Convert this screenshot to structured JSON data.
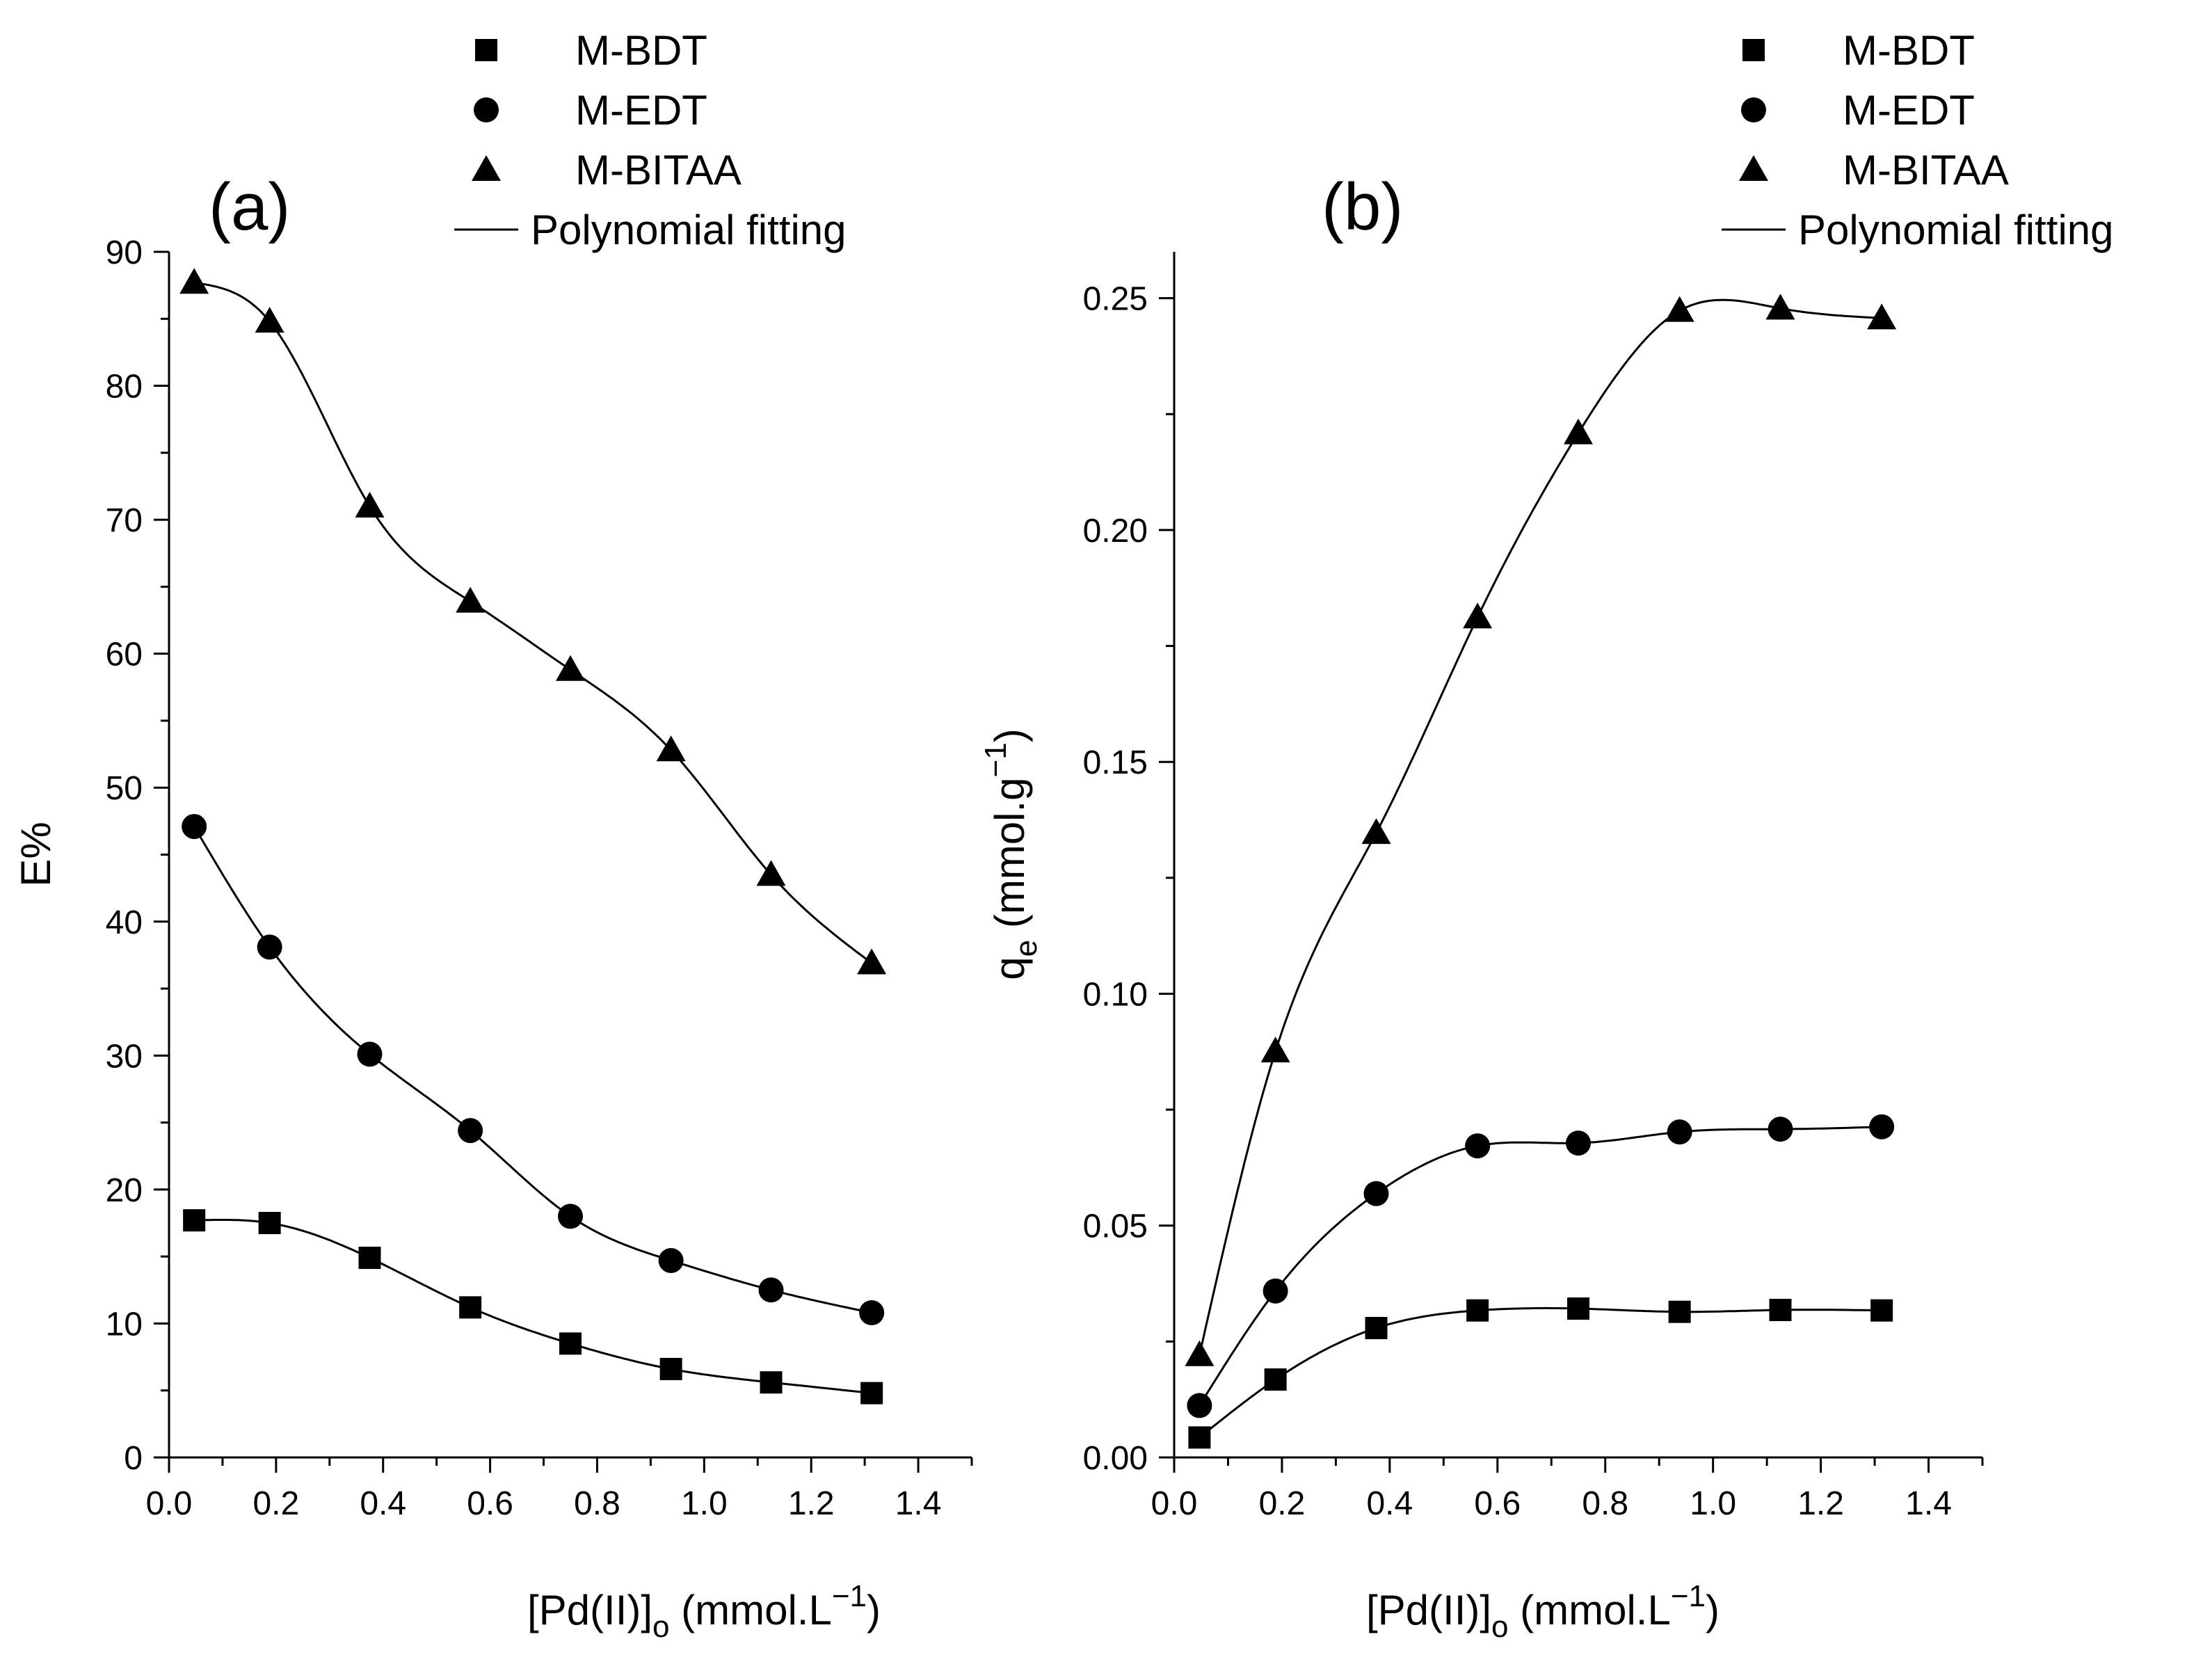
{
  "chart_data": [
    {
      "type": "scatter",
      "panel_label": "(a)",
      "title": "",
      "xlabel": {
        "main": "[Pd(II)]",
        "sub": "o",
        "unit": " (mmol.L",
        "exp": "−1",
        "close": ")"
      },
      "ylabel": {
        "text": "E%"
      },
      "xlim": [
        0,
        1.5
      ],
      "ylim": [
        0,
        90
      ],
      "xticks": [
        "0.0",
        "0.2",
        "0.4",
        "0.6",
        "0.8",
        "1.0",
        "1.2",
        "1.4"
      ],
      "yticks": [
        "0",
        "10",
        "20",
        "30",
        "40",
        "50",
        "60",
        "70",
        "80",
        "90"
      ],
      "legend": {
        "position": "top-right",
        "items": [
          {
            "label": "M-BDT",
            "marker": "square"
          },
          {
            "label": "M-EDT",
            "marker": "circle"
          },
          {
            "label": "M-BITAA",
            "marker": "triangle"
          },
          {
            "label": "Polynomial fitting",
            "marker": "line"
          }
        ]
      },
      "x": [
        0.047,
        0.188,
        0.375,
        0.563,
        0.75,
        0.938,
        1.125,
        1.313
      ],
      "series": [
        {
          "name": "M-BDT",
          "marker": "square",
          "values": [
            17.7,
            17.5,
            14.9,
            11.2,
            8.5,
            6.6,
            5.6,
            4.8
          ]
        },
        {
          "name": "M-EDT",
          "marker": "circle",
          "values": [
            47.1,
            38.1,
            30.1,
            24.4,
            18.0,
            14.7,
            12.5,
            10.8
          ]
        },
        {
          "name": "M-BITAA",
          "marker": "triangle",
          "values": [
            87.7,
            84.8,
            71.0,
            63.9,
            58.8,
            52.8,
            43.5,
            36.9
          ]
        }
      ]
    },
    {
      "type": "scatter",
      "panel_label": "(b)",
      "title": "",
      "xlabel": {
        "main": "[Pd(II)]",
        "sub": "o",
        "unit": " (mmol.L",
        "exp": "−1",
        "close": ")"
      },
      "ylabel": {
        "main": "q",
        "sub": "e",
        "unit": " (mmol.g",
        "exp": "−1",
        "close": ")"
      },
      "xlim": [
        0,
        1.5
      ],
      "ylim": [
        0,
        0.26
      ],
      "xticks": [
        "0.0",
        "0.2",
        "0.4",
        "0.6",
        "0.8",
        "1.0",
        "1.2",
        "1.4"
      ],
      "yticks": [
        "0.00",
        "0.05",
        "0.10",
        "0.15",
        "0.20",
        "0.25"
      ],
      "legend": {
        "position": "top-right",
        "items": [
          {
            "label": "M-BDT",
            "marker": "square"
          },
          {
            "label": "M-EDT",
            "marker": "circle"
          },
          {
            "label": "M-BITAA",
            "marker": "triangle"
          },
          {
            "label": "Polynomial fitting",
            "marker": "line"
          }
        ]
      },
      "x": [
        0.047,
        0.188,
        0.375,
        0.563,
        0.75,
        0.938,
        1.125,
        1.313
      ],
      "series": [
        {
          "name": "M-BDT",
          "marker": "square",
          "values": [
            0.0043,
            0.0168,
            0.0279,
            0.0317,
            0.0321,
            0.0314,
            0.0318,
            0.0317
          ]
        },
        {
          "name": "M-EDT",
          "marker": "circle",
          "values": [
            0.0112,
            0.0359,
            0.0569,
            0.0672,
            0.0678,
            0.0702,
            0.0708,
            0.0713
          ]
        },
        {
          "name": "M-BITAA",
          "marker": "triangle",
          "values": [
            0.0221,
            0.0876,
            0.1347,
            0.1812,
            0.2209,
            0.2473,
            0.2478,
            0.2457
          ]
        }
      ]
    }
  ]
}
